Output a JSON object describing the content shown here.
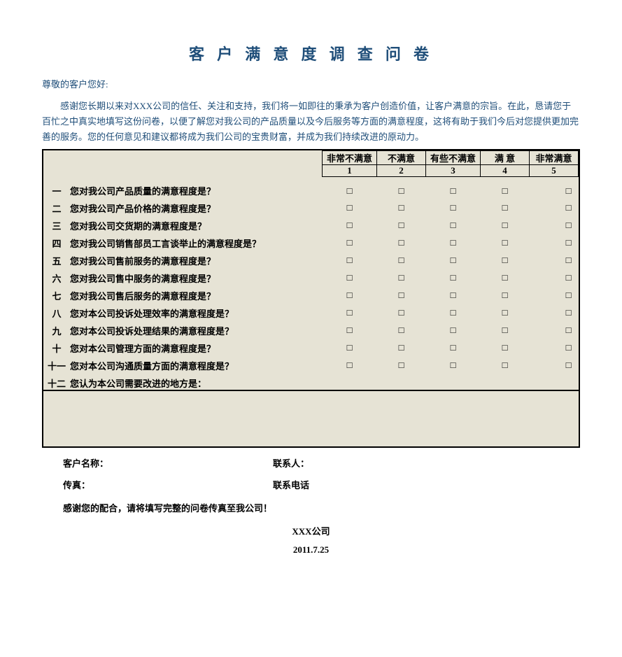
{
  "title": "客 户 满 意 度 调 查 问 卷",
  "salutation": "尊敬的客户您好:",
  "intro": "感谢您长期以来对XXX公司的信任、关注和支持，我们将一如即往的秉承为客户创造价值，让客户满意的宗旨。在此，恳请您于百忙之中真实地填写这份问卷，以便了解您对我公司的产品质量以及今后服务等方面的满意程度，这将有助于我们今后对您提供更加完善的服务。您的任何意见和建议都将成为我们公司的宝贵财富，并成为我们持续改进的原动力。",
  "rating_headers": [
    "非常不满意",
    "不满意",
    "有些不满意",
    "满 意",
    "非常满意"
  ],
  "rating_numbers": [
    "1",
    "2",
    "3",
    "4",
    "5"
  ],
  "checkbox_glyph": "□",
  "questions": [
    {
      "num": "一",
      "text": "您对我公司产品质量的满意程度是？",
      "has_boxes": true
    },
    {
      "num": "二",
      "text": "您对我公司产品价格的满意程度是？",
      "has_boxes": true
    },
    {
      "num": "三",
      "text": "您对我公司交货期的满意程度是？",
      "has_boxes": true
    },
    {
      "num": "四",
      "text": "您对我公司销售部员工言谈举止的满意程度是？",
      "has_boxes": true
    },
    {
      "num": "五",
      "text": "您对我公司售前服务的满意程度是？",
      "has_boxes": true
    },
    {
      "num": "六",
      "text": "您对我公司售中服务的满意程度是？",
      "has_boxes": true
    },
    {
      "num": "七",
      "text": "您对我公司售后服务的满意程度是？",
      "has_boxes": true
    },
    {
      "num": "八",
      "text": "您对本公司投诉处理效率的满意程度是？",
      "has_boxes": true
    },
    {
      "num": "九",
      "text": "您对本公司投诉处理结果的满意程度是？",
      "has_boxes": true
    },
    {
      "num": "十",
      "text": "您对本公司管理方面的满意程度是？",
      "has_boxes": true
    },
    {
      "num": "十一",
      "text": "您对本公司沟通质量方面的满意程度是？",
      "has_boxes": true
    },
    {
      "num": "十二",
      "text": "您认为本公司需要改进的地方是：",
      "has_boxes": false
    }
  ],
  "footer": {
    "customer_name_label": "客户名称：",
    "contact_label": "联系人：",
    "fax_label": "传真：",
    "phone_label": "联系电话",
    "thanks": "感谢您的配合，请将填写完整的问卷传真至我公司！",
    "company": "XXX公司",
    "date": "2011.7.25"
  },
  "colors": {
    "background": "#ffffff",
    "box_bg": "#e6e3d5",
    "border": "#000000",
    "heading_text": "#1f4e79"
  }
}
